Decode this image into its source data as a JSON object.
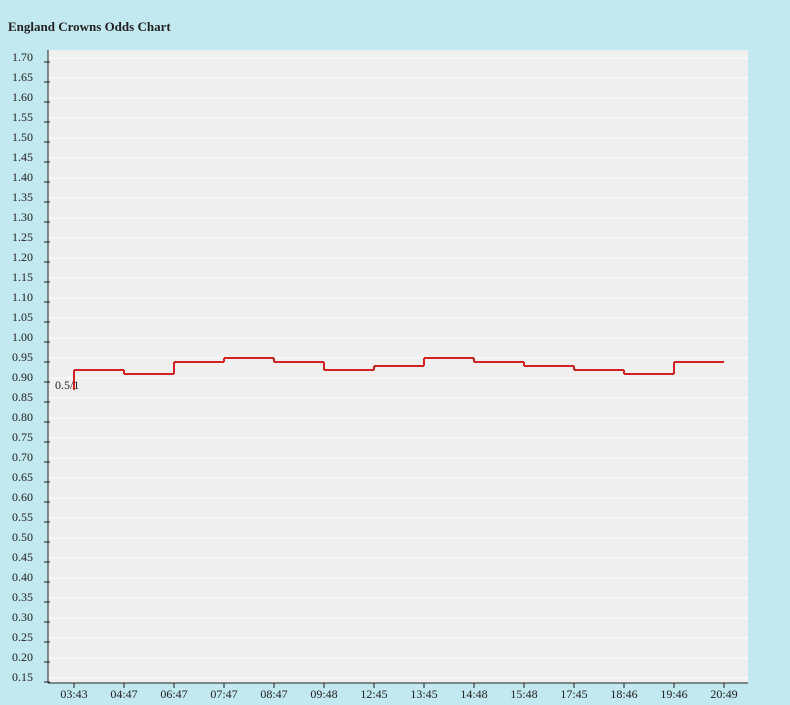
{
  "chart_data": {
    "type": "step",
    "title": "England Crowns Odds Chart",
    "annotation": "0.5/1",
    "categories": [
      "03:43",
      "04:47",
      "06:47",
      "07:47",
      "08:47",
      "09:48",
      "12:45",
      "13:45",
      "14:48",
      "15:48",
      "17:45",
      "18:46",
      "19:46",
      "20:49"
    ],
    "values": [
      0.92,
      0.91,
      0.94,
      0.95,
      0.94,
      0.92,
      0.93,
      0.95,
      0.94,
      0.93,
      0.92,
      0.91,
      0.94,
      0.94
    ],
    "color": "#d42020",
    "ylim": [
      0.15,
      1.7
    ],
    "yticks": [
      {
        "value": 1.7,
        "label": "1.70"
      },
      {
        "value": 1.65,
        "label": "1.65"
      },
      {
        "value": 1.6,
        "label": "1.60"
      },
      {
        "value": 1.55,
        "label": "1.55"
      },
      {
        "value": 1.5,
        "label": "1.50"
      },
      {
        "value": 1.45,
        "label": "1.45"
      },
      {
        "value": 1.4,
        "label": "1.40"
      },
      {
        "value": 1.35,
        "label": "1.35"
      },
      {
        "value": 1.3,
        "label": "1.30"
      },
      {
        "value": 1.25,
        "label": "1.25"
      },
      {
        "value": 1.2,
        "label": "1.20"
      },
      {
        "value": 1.15,
        "label": "1.15"
      },
      {
        "value": 1.1,
        "label": "1.10"
      },
      {
        "value": 1.05,
        "label": "1.05"
      },
      {
        "value": 1.0,
        "label": "1.00"
      },
      {
        "value": 0.95,
        "label": "0.95"
      },
      {
        "value": 0.9,
        "label": "0.90"
      },
      {
        "value": 0.85,
        "label": "0.85"
      },
      {
        "value": 0.8,
        "label": "0.80"
      },
      {
        "value": 0.75,
        "label": "0.75"
      },
      {
        "value": 0.7,
        "label": "0.70"
      },
      {
        "value": 0.65,
        "label": "0.65"
      },
      {
        "value": 0.6,
        "label": "0.60"
      },
      {
        "value": 0.55,
        "label": "0.55"
      },
      {
        "value": 0.5,
        "label": "0.50"
      },
      {
        "value": 0.45,
        "label": "0.45"
      },
      {
        "value": 0.4,
        "label": "0.40"
      },
      {
        "value": 0.35,
        "label": "0.35"
      },
      {
        "value": 0.3,
        "label": "0.30"
      },
      {
        "value": 0.25,
        "label": "0.25"
      },
      {
        "value": 0.2,
        "label": "0.20"
      },
      {
        "value": 0.15,
        "label": "0.15"
      }
    ],
    "grid": true
  }
}
